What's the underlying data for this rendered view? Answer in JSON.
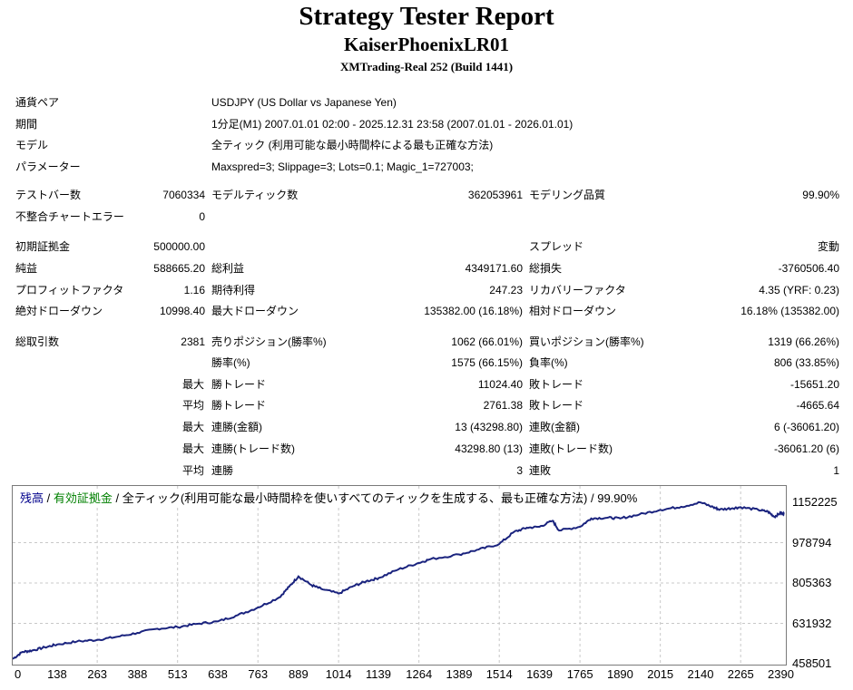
{
  "report": {
    "title": "Strategy Tester Report",
    "ea_name": "KaiserPhoenixLR01",
    "server": "XMTrading-Real 252 (Build 1441)"
  },
  "settings": [
    {
      "label": "通貨ペア",
      "value": "USDJPY (US Dollar vs Japanese Yen)"
    },
    {
      "label": "期間",
      "value": "1分足(M1) 2007.01.01 02:00 - 2025.12.31 23:58 (2007.01.01 - 2026.01.01)"
    },
    {
      "label": "モデル",
      "value": "全ティック (利用可能な最小時間枠による最も正確な方法)"
    },
    {
      "label": "パラメーター",
      "value": "Maxspred=3; Slippage=3; Lots=0.1; Magic_1=727003;"
    }
  ],
  "stats": {
    "bars_label": "テストバー数",
    "bars": "7060334",
    "ticks_label": "モデルティック数",
    "ticks": "362053961",
    "quality_label": "モデリング品質",
    "quality": "99.90%",
    "mismatch_label": "不整合チャートエラー",
    "mismatch": "0",
    "deposit_label": "初期証拠金",
    "deposit": "500000.00",
    "spread_label": "スプレッド",
    "spread": "変動",
    "net_label": "純益",
    "net": "588665.20",
    "gross_profit_label": "総利益",
    "gross_profit": "4349171.60",
    "gross_loss_label": "総損失",
    "gross_loss": "-3760506.40",
    "pf_label": "プロフィットファクタ",
    "pf": "1.16",
    "payoff_label": "期待利得",
    "payoff": "247.23",
    "rf_label": "リカバリーファクタ",
    "rf": "4.35 (YRF: 0.23)",
    "abs_dd_label": "絶対ドローダウン",
    "abs_dd": "10998.40",
    "max_dd_label": "最大ドローダウン",
    "max_dd": "135382.00 (16.18%)",
    "rel_dd_label": "相対ドローダウン",
    "rel_dd": "16.18% (135382.00)",
    "trades_label": "総取引数",
    "trades": "2381",
    "short_label": "売りポジション(勝率%)",
    "short": "1062 (66.01%)",
    "long_label": "買いポジション(勝率%)",
    "long": "1319 (66.26%)",
    "win_pct_label": "勝率(%)",
    "win_pct": "1575 (66.15%)",
    "loss_pct_label": "負率(%)",
    "loss_pct": "806 (33.85%)",
    "max_prefix": "最大",
    "avg_prefix": "平均",
    "largest_win_label": "勝トレード",
    "largest_win": "11024.40",
    "largest_loss_label": "敗トレード",
    "largest_loss": "-15651.20",
    "avg_win_label": "勝トレード",
    "avg_win": "2761.38",
    "avg_loss_label": "敗トレード",
    "avg_loss": "-4665.64",
    "max_consec_win_amt_label": "連勝(金額)",
    "max_consec_win_amt": "13 (43298.80)",
    "max_consec_loss_amt_label": "連敗(金額)",
    "max_consec_loss_amt": "6 (-36061.20)",
    "max_consec_win_cnt_label": "連勝(トレード数)",
    "max_consec_win_cnt": "43298.80 (13)",
    "max_consec_loss_cnt_label": "連敗(トレード数)",
    "max_consec_loss_cnt": "-36061.20 (6)",
    "avg_consec_win_label": "連勝",
    "avg_consec_win": "3",
    "avg_consec_loss_label": "連敗",
    "avg_consec_loss": "1"
  },
  "legend": {
    "balance": "残高",
    "sep1": " / ",
    "equity": "有効証拠金",
    "rest": " / 全ティック(利用可能な最小時間枠を使いすべてのティックを生成する、最も正確な方法) / 99.90%",
    "balance_color": "#00008b",
    "equity_color": "#008000"
  },
  "chart_data": {
    "type": "line",
    "series": [
      {
        "name": "残高",
        "color": "#1a237e",
        "x": [
          0,
          30,
          60,
          100,
          138,
          200,
          263,
          320,
          388,
          450,
          513,
          575,
          638,
          700,
          763,
          830,
          860,
          889,
          930,
          960,
          1014,
          1060,
          1100,
          1139,
          1200,
          1264,
          1300,
          1389,
          1450,
          1514,
          1560,
          1600,
          1639,
          1680,
          1700,
          1765,
          1800,
          1850,
          1890,
          1950,
          2015,
          2080,
          2140,
          2180,
          2200,
          2240,
          2265,
          2320,
          2350,
          2370,
          2390,
          2400
        ],
        "y": [
          479000,
          509000,
          515000,
          529000,
          541000,
          554000,
          561000,
          573000,
          591000,
          609000,
          616000,
          630000,
          640000,
          667000,
          700000,
          744000,
          789000,
          834000,
          796000,
          780000,
          760000,
          792000,
          813000,
          827000,
          864000,
          892000,
          908000,
          928000,
          949000,
          973000,
          1025000,
          1043000,
          1047000,
          1073000,
          1031000,
          1047000,
          1083000,
          1086000,
          1083000,
          1100000,
          1120000,
          1133000,
          1152000,
          1131000,
          1121000,
          1127000,
          1131000,
          1120000,
          1112000,
          1090000,
          1107000,
          1103000
        ]
      }
    ],
    "x_ticks": [
      "0",
      "138",
      "263",
      "388",
      "513",
      "638",
      "763",
      "889",
      "1014",
      "1139",
      "1264",
      "1389",
      "1514",
      "1639",
      "1765",
      "1890",
      "2015",
      "2140",
      "2265",
      "2390"
    ],
    "y_ticks": [
      "1152225",
      "978794",
      "805363",
      "631932",
      "458501"
    ],
    "xlim": [
      0,
      2400
    ],
    "ylim": [
      458501,
      1152225
    ],
    "grid": true
  }
}
